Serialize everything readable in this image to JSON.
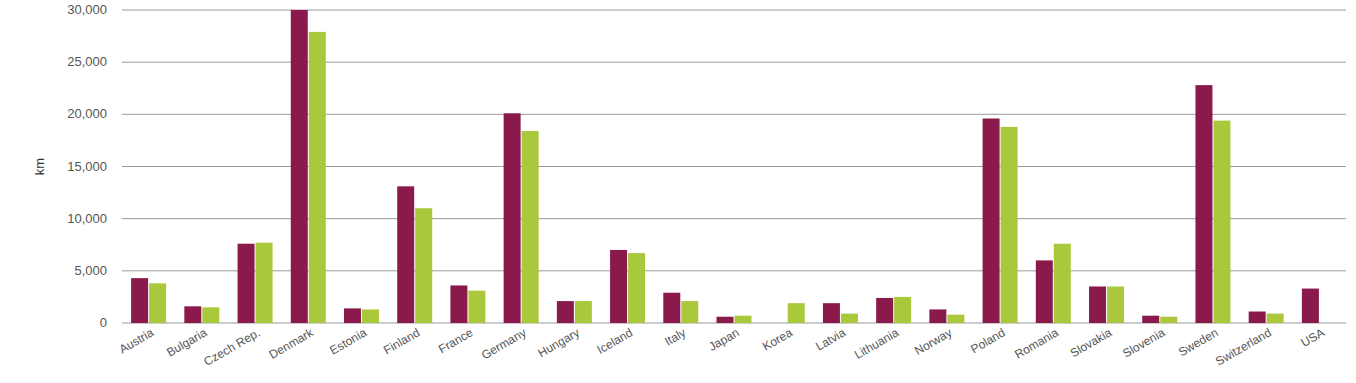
{
  "chart_data": {
    "type": "bar",
    "y_label": "km",
    "categories": [
      "Austria",
      "Bulgaria",
      "Czech Rep.",
      "Denmark",
      "Estonia",
      "Finland",
      "France",
      "Germany",
      "Hungary",
      "Iceland",
      "Italy",
      "Japan",
      "Korea",
      "Latvia",
      "Lithuania",
      "Norway",
      "Poland",
      "Romania",
      "Slovakia",
      "Slovenia",
      "Sweden",
      "Switzerland",
      "USA"
    ],
    "series": [
      {
        "color": "#8b1a4c",
        "values": [
          4300,
          1600,
          7600,
          30000,
          1400,
          13100,
          3600,
          20100,
          2100,
          7000,
          2900,
          600,
          null,
          1900,
          2400,
          1300,
          19600,
          6000,
          3500,
          700,
          22800,
          1100,
          3300
        ]
      },
      {
        "color": "#a9c83b",
        "values": [
          3800,
          1500,
          7700,
          27900,
          1300,
          11000,
          3100,
          18400,
          2100,
          6700,
          2100,
          700,
          1900,
          900,
          2500,
          800,
          18800,
          7600,
          3500,
          600,
          19400,
          900,
          null
        ]
      }
    ],
    "ylim": [
      0,
      30000
    ],
    "yticks": [
      0,
      {
        "value": 5000,
        "label": "5,000"
      },
      {
        "value": 10000,
        "label": "10,000"
      },
      {
        "value": 15000,
        "label": "15,000"
      },
      {
        "value": 20000,
        "label": "20,000"
      },
      {
        "value": 25000,
        "label": "25,000"
      },
      {
        "value": 30000,
        "label": "30,000"
      }
    ],
    "grid": true
  }
}
